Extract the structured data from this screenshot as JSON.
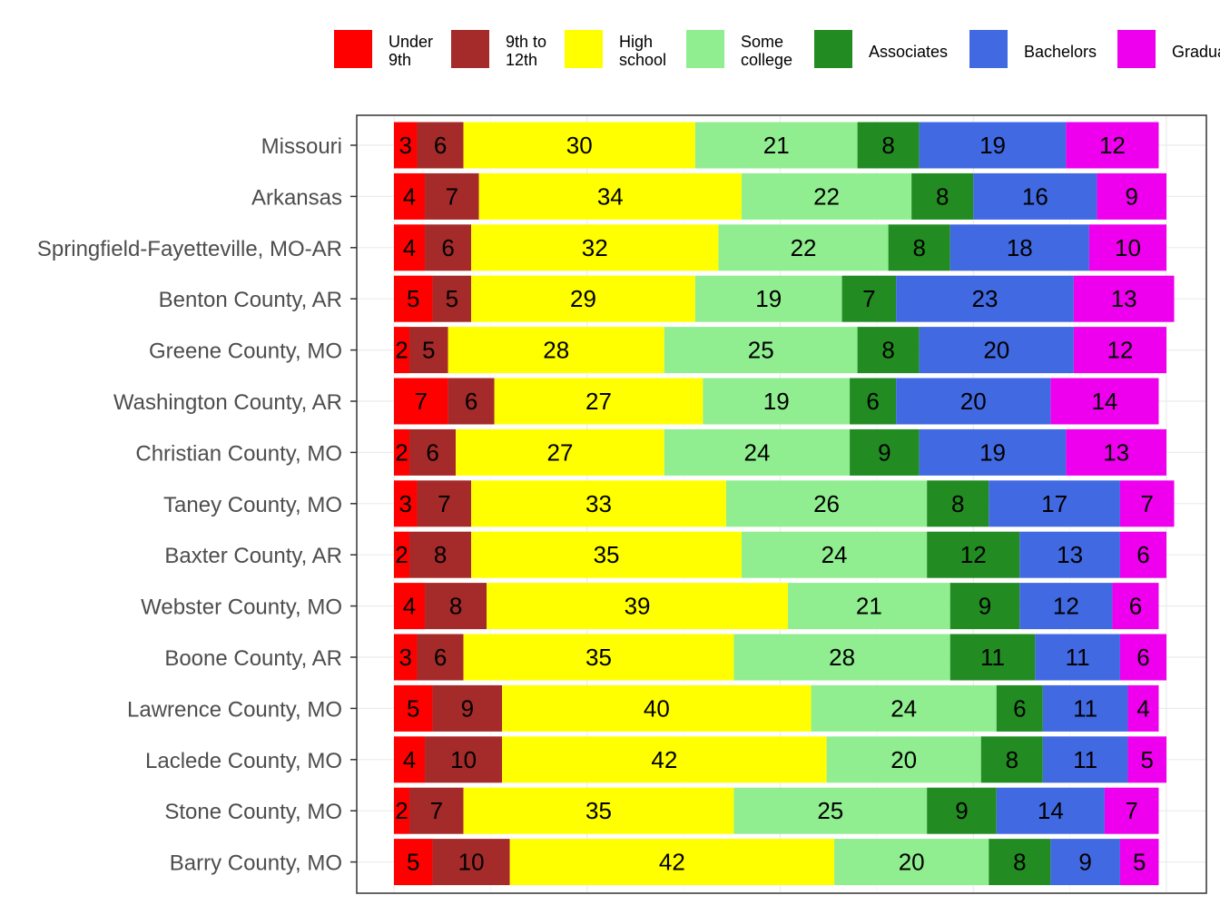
{
  "chart_data": {
    "type": "bar",
    "orientation": "horizontal",
    "stacked": true,
    "grid": true,
    "legend_position": "top",
    "legend": [
      {
        "lines": [
          "Under",
          "9th"
        ],
        "color": "#FF0000"
      },
      {
        "lines": [
          "9th to",
          "12th"
        ],
        "color": "#A52A2A"
      },
      {
        "lines": [
          "High",
          "school"
        ],
        "color": "#FFFF00"
      },
      {
        "lines": [
          "Some",
          "college"
        ],
        "color": "#90EE90"
      },
      {
        "lines": [
          "Associates"
        ],
        "color": "#228B22"
      },
      {
        "lines": [
          "Bachelors"
        ],
        "color": "#4169E1"
      },
      {
        "lines": [
          "Graduate"
        ],
        "color": "#EE00EE"
      }
    ],
    "categories": [
      "Missouri",
      "Arkansas",
      "Springfield-Fayetteville, MO-AR",
      "Benton County, AR",
      "Greene County, MO",
      "Washington County, AR",
      "Christian County, MO",
      "Taney County, MO",
      "Baxter County, AR",
      "Webster County, MO",
      "Boone County, AR",
      "Lawrence County, MO",
      "Laclede County, MO",
      "Stone County, MO",
      "Barry County, MO"
    ],
    "values": [
      [
        3,
        6,
        30,
        21,
        8,
        19,
        12
      ],
      [
        4,
        7,
        34,
        22,
        8,
        16,
        9
      ],
      [
        4,
        6,
        32,
        22,
        8,
        18,
        10
      ],
      [
        5,
        5,
        29,
        19,
        7,
        23,
        13
      ],
      [
        2,
        5,
        28,
        25,
        8,
        20,
        12
      ],
      [
        7,
        6,
        27,
        19,
        6,
        20,
        14
      ],
      [
        2,
        6,
        27,
        24,
        9,
        19,
        13
      ],
      [
        3,
        7,
        33,
        26,
        8,
        17,
        7
      ],
      [
        2,
        8,
        35,
        24,
        12,
        13,
        6
      ],
      [
        4,
        8,
        39,
        21,
        9,
        12,
        6
      ],
      [
        3,
        6,
        35,
        28,
        11,
        11,
        6
      ],
      [
        5,
        9,
        40,
        24,
        6,
        11,
        4
      ],
      [
        4,
        10,
        42,
        20,
        8,
        11,
        5
      ],
      [
        2,
        7,
        35,
        25,
        9,
        14,
        7
      ],
      [
        5,
        10,
        42,
        20,
        8,
        9,
        5
      ]
    ],
    "xlim": [
      0,
      100
    ]
  }
}
